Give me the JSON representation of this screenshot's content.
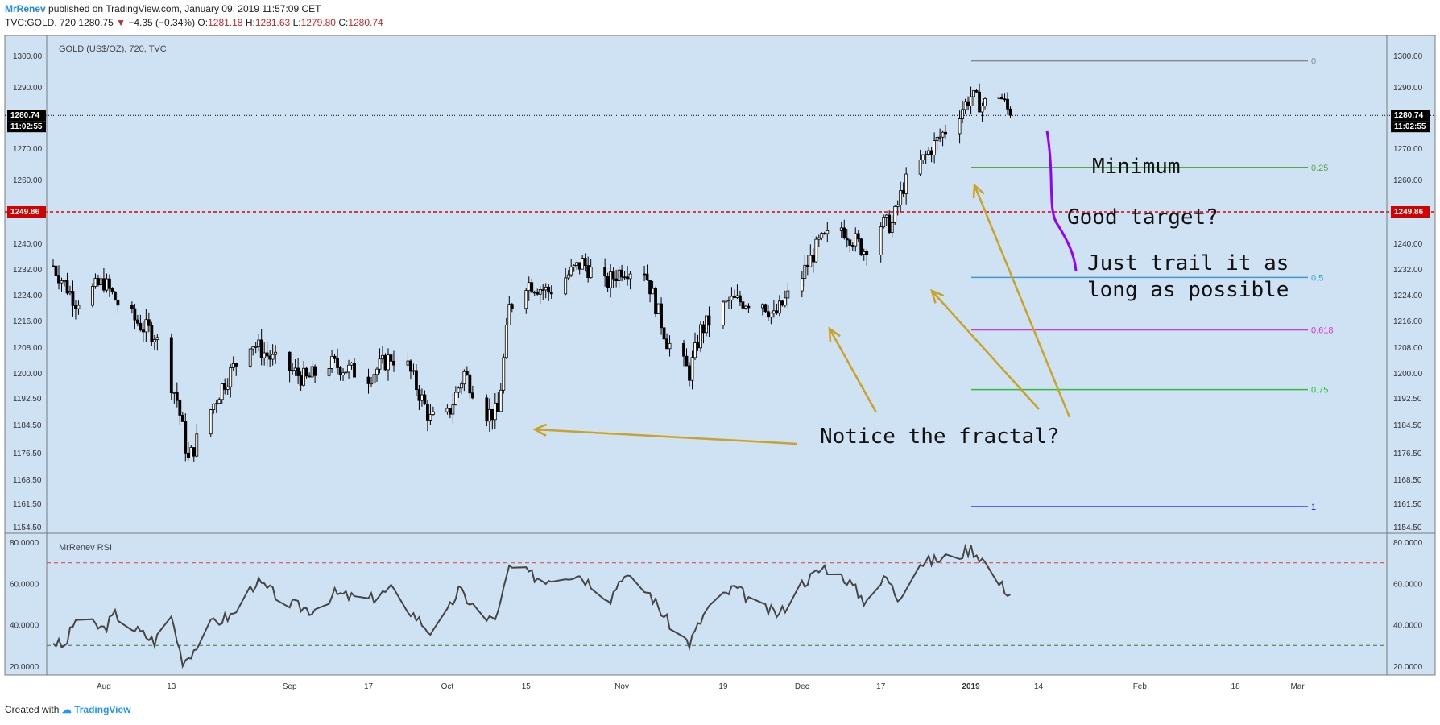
{
  "header": {
    "author": "MrRenev",
    "published": "published on TradingView.com, January 09, 2019 11:57:09 CET",
    "symbol": "TVC:GOLD, 720",
    "last": "1280.75",
    "down_arrow": "▼",
    "change": "−4.35 (−0.34%)",
    "o_label": "O:",
    "o_value": "1281.18",
    "h_label": "H:",
    "h_value": "1281.63",
    "l_label": "L:",
    "l_value": "1279.80",
    "c_label": "C:",
    "c_value": "1280.74"
  },
  "footer": {
    "created_with": "Created with",
    "brand": "TradingView"
  },
  "colors": {
    "pane_bg": "#cfe2f3",
    "candle": "#000000",
    "rsi_line": "#454545",
    "annotation_arrow": "#c9a227",
    "purple_line": "#9400ff",
    "support_line": "#e00000",
    "current_price_line": "#000000"
  },
  "chart_data": [
    {
      "type": "candlestick",
      "title": "GOLD (US$/OZ), 720, TVC",
      "x_ticks": [
        "Aug",
        "13",
        "Sep",
        "17",
        "Oct",
        "15",
        "Nov",
        "19",
        "Dec",
        "17",
        "2019",
        "14",
        "Feb",
        "18",
        "Mar"
      ],
      "y_ticks": [
        "1300.00",
        "1290.00",
        "1280.00",
        "1270.00",
        "1260.00",
        "1249.86",
        "1240.00",
        "1232.00",
        "1224.00",
        "1216.00",
        "1208.00",
        "1200.00",
        "1192.50",
        "1184.50",
        "1176.50",
        "1168.50",
        "1161.50",
        "1154.50"
      ],
      "ylim": [
        1153,
        1305
      ],
      "current_price": {
        "value": 1280.74,
        "label": "1280.74",
        "time": "11:02:55"
      },
      "support_line": {
        "value": 1249.86,
        "label": "1249.86",
        "style": "dashed red"
      },
      "close_path": [
        {
          "x": "Jul 23",
          "y": 1233
        },
        {
          "x": "Jul 27",
          "y": 1222
        },
        {
          "x": "Aug 1",
          "y": 1228
        },
        {
          "x": "Aug 4",
          "y": 1220
        },
        {
          "x": "Aug 8",
          "y": 1214
        },
        {
          "x": "Aug 10",
          "y": 1212
        },
        {
          "x": "Aug 14",
          "y": 1192
        },
        {
          "x": "Aug 16",
          "y": 1174
        },
        {
          "x": "Aug 17",
          "y": 1178
        },
        {
          "x": "Aug 20",
          "y": 1189
        },
        {
          "x": "Aug 22",
          "y": 1196
        },
        {
          "x": "Aug 27",
          "y": 1210
        },
        {
          "x": "Aug 31",
          "y": 1204
        },
        {
          "x": "Sep 6",
          "y": 1198
        },
        {
          "x": "Sep 10",
          "y": 1203
        },
        {
          "x": "Sep 17",
          "y": 1199
        },
        {
          "x": "Sep 21",
          "y": 1205
        },
        {
          "x": "Sep 24",
          "y": 1202
        },
        {
          "x": "Sep 28",
          "y": 1186
        },
        {
          "x": "Oct 1",
          "y": 1187
        },
        {
          "x": "Oct 4",
          "y": 1200
        },
        {
          "x": "Oct 8",
          "y": 1188
        },
        {
          "x": "Oct 10",
          "y": 1188
        },
        {
          "x": "Oct 12",
          "y": 1220
        },
        {
          "x": "Oct 15",
          "y": 1228
        },
        {
          "x": "Oct 19",
          "y": 1225
        },
        {
          "x": "Oct 25",
          "y": 1234
        },
        {
          "x": "Oct 29",
          "y": 1227
        },
        {
          "x": "Nov 1",
          "y": 1232
        },
        {
          "x": "Nov 5",
          "y": 1232
        },
        {
          "x": "Nov 9",
          "y": 1210
        },
        {
          "x": "Nov 13",
          "y": 1200
        },
        {
          "x": "Nov 15",
          "y": 1213
        },
        {
          "x": "Nov 20",
          "y": 1222
        },
        {
          "x": "Nov 26",
          "y": 1222
        },
        {
          "x": "Nov 28",
          "y": 1217
        },
        {
          "x": "Dec 3",
          "y": 1230
        },
        {
          "x": "Dec 6",
          "y": 1240
        },
        {
          "x": "Dec 10",
          "y": 1245
        },
        {
          "x": "Dec 14",
          "y": 1238
        },
        {
          "x": "Dec 17",
          "y": 1246
        },
        {
          "x": "Dec 19",
          "y": 1246
        },
        {
          "x": "Dec 21",
          "y": 1258
        },
        {
          "x": "Dec 26",
          "y": 1270
        },
        {
          "x": "Dec 31",
          "y": 1282
        },
        {
          "x": "Jan 2",
          "y": 1287
        },
        {
          "x": "Jan 4",
          "y": 1284
        },
        {
          "x": "Jan 7",
          "y": 1288
        },
        {
          "x": "Jan 9",
          "y": 1280.74
        }
      ],
      "fibonacci": [
        {
          "label": "0",
          "value": 1298.3,
          "color": "#888888"
        },
        {
          "label": "0.25",
          "value": 1263.9,
          "color": "#5ba34a"
        },
        {
          "label": "0.5",
          "value": 1229.4,
          "color": "#3d9ad1"
        },
        {
          "label": "0.618",
          "value": 1213.2,
          "color": "#d633d6"
        },
        {
          "label": "0.75",
          "value": 1195.0,
          "color": "#2ebd35"
        },
        {
          "label": "1",
          "value": 1160.5,
          "color": "#1d1dd6"
        }
      ],
      "annotations": [
        "Minimum",
        "Good target?",
        "Just trail it as",
        "long as possible",
        "Notice the fractal?"
      ]
    },
    {
      "type": "line",
      "title": "MrRenev RSI",
      "y_ticks": [
        "80.0000",
        "60.0000",
        "40.0000",
        "20.0000"
      ],
      "ylim": [
        18,
        82
      ],
      "overbought": 70,
      "oversold": 30,
      "series": [
        {
          "name": "MrRenev RSI",
          "points": [
            {
              "x": "Jul 23",
              "y": 32
            },
            {
              "x": "Jul 25",
              "y": 29
            },
            {
              "x": "Jul 27",
              "y": 43
            },
            {
              "x": "Aug 1",
              "y": 38
            },
            {
              "x": "Aug 3",
              "y": 45
            },
            {
              "x": "Aug 7",
              "y": 37
            },
            {
              "x": "Aug 10",
              "y": 32
            },
            {
              "x": "Aug 13",
              "y": 44
            },
            {
              "x": "Aug 15",
              "y": 22
            },
            {
              "x": "Aug 17",
              "y": 28
            },
            {
              "x": "Aug 20",
              "y": 40
            },
            {
              "x": "Aug 24",
              "y": 45
            },
            {
              "x": "Aug 28",
              "y": 61
            },
            {
              "x": "Sep 3",
              "y": 50
            },
            {
              "x": "Sep 7",
              "y": 47
            },
            {
              "x": "Sep 11",
              "y": 55
            },
            {
              "x": "Sep 17",
              "y": 52
            },
            {
              "x": "Sep 21",
              "y": 57
            },
            {
              "x": "Sep 25",
              "y": 45
            },
            {
              "x": "Sep 29",
              "y": 34
            },
            {
              "x": "Oct 3",
              "y": 57
            },
            {
              "x": "Oct 8",
              "y": 42
            },
            {
              "x": "Oct 10",
              "y": 45
            },
            {
              "x": "Oct 12",
              "y": 68
            },
            {
              "x": "Oct 18",
              "y": 62
            },
            {
              "x": "Oct 24",
              "y": 65
            },
            {
              "x": "Oct 30",
              "y": 53
            },
            {
              "x": "Nov 1",
              "y": 64
            },
            {
              "x": "Nov 6",
              "y": 55
            },
            {
              "x": "Nov 9",
              "y": 42
            },
            {
              "x": "Nov 13",
              "y": 31
            },
            {
              "x": "Nov 16",
              "y": 47
            },
            {
              "x": "Nov 21",
              "y": 58
            },
            {
              "x": "Nov 26",
              "y": 48
            },
            {
              "x": "Nov 29",
              "y": 45
            },
            {
              "x": "Dec 3",
              "y": 60
            },
            {
              "x": "Dec 7",
              "y": 68
            },
            {
              "x": "Dec 11",
              "y": 62
            },
            {
              "x": "Dec 14",
              "y": 52
            },
            {
              "x": "Dec 18",
              "y": 63
            },
            {
              "x": "Dec 20",
              "y": 53
            },
            {
              "x": "Dec 24",
              "y": 70
            },
            {
              "x": "Dec 28",
              "y": 72
            },
            {
              "x": "Dec 31",
              "y": 74
            },
            {
              "x": "Jan 2",
              "y": 77
            },
            {
              "x": "Jan 4",
              "y": 72
            },
            {
              "x": "Jan 7",
              "y": 60
            },
            {
              "x": "Jan 9",
              "y": 55
            }
          ]
        }
      ]
    }
  ]
}
